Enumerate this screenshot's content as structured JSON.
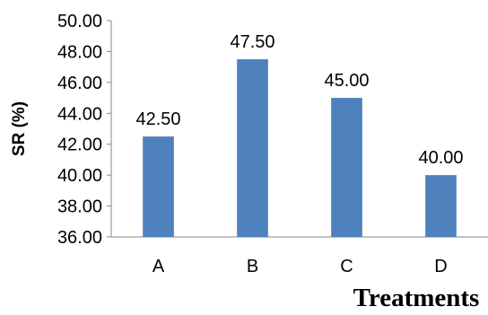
{
  "chart_data": {
    "type": "bar",
    "categories": [
      "A",
      "B",
      "C",
      "D"
    ],
    "values": [
      42.5,
      47.5,
      45.0,
      40.0
    ],
    "data_labels": [
      "42.50",
      "47.50",
      "45.00",
      "40.00"
    ],
    "xlabel": "Treatments",
    "ylabel": "SR (%)",
    "ylim": [
      36,
      50
    ],
    "yticks": [
      "36.00",
      "38.00",
      "40.00",
      "42.00",
      "44.00",
      "46.00",
      "48.00",
      "50.00"
    ],
    "grid": false,
    "bar_color": "#4f81bd",
    "axis_color": "#868686"
  }
}
